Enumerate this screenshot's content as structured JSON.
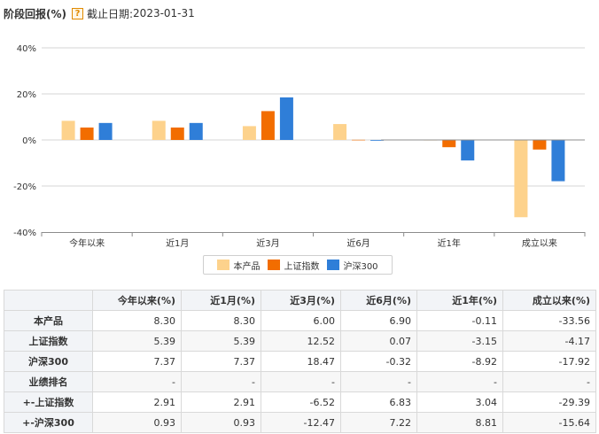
{
  "header": {
    "title": "阶段回报(%)",
    "help_glyph": "?",
    "cutoff_label": "截止日期:",
    "cutoff_date": "2023-01-31"
  },
  "chart_data": {
    "type": "bar",
    "categories": [
      "今年以来",
      "近1月",
      "近3月",
      "近6月",
      "近1年",
      "成立以来"
    ],
    "series": [
      {
        "name": "本产品",
        "color": "#fdd28c",
        "values": [
          8.3,
          8.3,
          6.0,
          6.9,
          -0.11,
          -33.56
        ]
      },
      {
        "name": "上证指数",
        "color": "#f26d00",
        "values": [
          5.39,
          5.39,
          12.52,
          0.07,
          -3.15,
          -4.17
        ]
      },
      {
        "name": "沪深300",
        "color": "#2f7ed8",
        "values": [
          7.37,
          7.37,
          18.47,
          -0.32,
          -8.92,
          -17.92
        ]
      }
    ],
    "ylim": [
      -40,
      40
    ],
    "yticks": [
      -40,
      -20,
      0,
      20,
      40
    ],
    "ytick_format": "%",
    "grid": true,
    "legend_position": "bottom"
  },
  "table": {
    "columns": [
      "",
      "今年以来(%)",
      "近1月(%)",
      "近3月(%)",
      "近6月(%)",
      "近1年(%)",
      "成立以来(%)"
    ],
    "rows": [
      {
        "label": "本产品",
        "values": [
          "8.30",
          "8.30",
          "6.00",
          "6.90",
          "-0.11",
          "-33.56"
        ]
      },
      {
        "label": "上证指数",
        "values": [
          "5.39",
          "5.39",
          "12.52",
          "0.07",
          "-3.15",
          "-4.17"
        ]
      },
      {
        "label": "沪深300",
        "values": [
          "7.37",
          "7.37",
          "18.47",
          "-0.32",
          "-8.92",
          "-17.92"
        ]
      },
      {
        "label": "业绩排名",
        "values": [
          "-",
          "-",
          "-",
          "-",
          "-",
          "-"
        ]
      },
      {
        "label": "+-上证指数",
        "values": [
          "2.91",
          "2.91",
          "-6.52",
          "6.83",
          "3.04",
          "-29.39"
        ]
      },
      {
        "label": "+-沪深300",
        "values": [
          "0.93",
          "0.93",
          "-12.47",
          "7.22",
          "8.81",
          "-15.64"
        ]
      }
    ]
  }
}
